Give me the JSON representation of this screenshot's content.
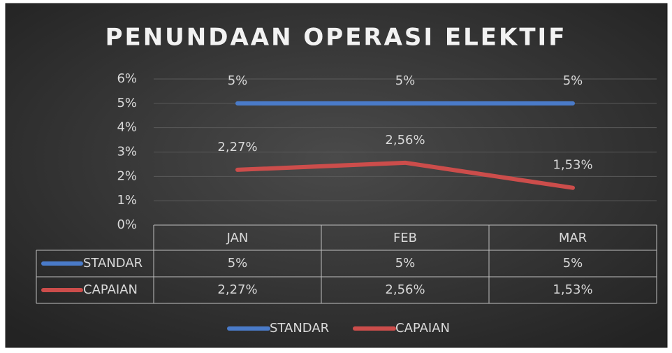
{
  "chart_data": {
    "type": "line",
    "title": "PENUNDAAN OPERASI ELEKTIF",
    "categories": [
      "JAN",
      "FEB",
      "MAR"
    ],
    "series": [
      {
        "name": "STANDAR",
        "color": "#4a7bc9",
        "values": [
          5,
          5,
          5
        ],
        "value_labels": [
          "5%",
          "5%",
          "5%"
        ]
      },
      {
        "name": "CAPAIAN",
        "color": "#cc4d4b",
        "values": [
          2.27,
          2.56,
          1.53
        ],
        "value_labels": [
          "2,27%",
          "2,56%",
          "1,53%"
        ]
      }
    ],
    "ylim": [
      0,
      6
    ],
    "yticks": [
      {
        "value": 0,
        "label": "0%"
      },
      {
        "value": 1,
        "label": "1%"
      },
      {
        "value": 2,
        "label": "2%"
      },
      {
        "value": 3,
        "label": "3%"
      },
      {
        "value": 4,
        "label": "4%"
      },
      {
        "value": 5,
        "label": "5%"
      },
      {
        "value": 6,
        "label": "6%"
      }
    ],
    "grid": true,
    "legend": "bottom"
  }
}
